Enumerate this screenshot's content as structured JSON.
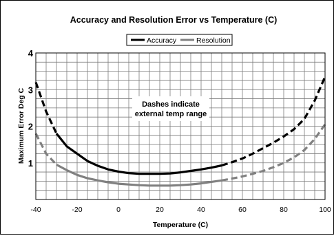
{
  "chart_data": {
    "type": "line",
    "title": "Accuracy and Resolution Error vs Temperature (C)",
    "xlabel": "Temperature (C)",
    "ylabel": "Maximum Error Deg C",
    "xlim": [
      -40,
      100
    ],
    "ylim": [
      0,
      4
    ],
    "x_ticks": [
      -40,
      -20,
      0,
      20,
      40,
      60,
      80,
      100
    ],
    "y_ticks": [
      1,
      2,
      3,
      4
    ],
    "grid": true,
    "legend": "top-center",
    "annotation": [
      "Dashes indicate",
      "external temp range"
    ],
    "solid_range": [
      -30,
      50
    ],
    "series": [
      {
        "name": "Accuracy",
        "color": "#000000",
        "x": [
          -40,
          -35,
          -30,
          -25,
          -20,
          -15,
          -10,
          -5,
          0,
          5,
          10,
          15,
          20,
          25,
          30,
          35,
          40,
          45,
          50,
          55,
          60,
          65,
          70,
          75,
          80,
          85,
          90,
          95,
          100
        ],
        "values": [
          3.2,
          2.4,
          1.8,
          1.45,
          1.25,
          1.05,
          0.92,
          0.82,
          0.76,
          0.72,
          0.7,
          0.7,
          0.7,
          0.71,
          0.74,
          0.78,
          0.82,
          0.87,
          0.93,
          1.02,
          1.12,
          1.25,
          1.4,
          1.55,
          1.72,
          1.92,
          2.2,
          2.7,
          3.35
        ]
      },
      {
        "name": "Resolution",
        "color": "#808080",
        "x": [
          -40,
          -35,
          -30,
          -25,
          -20,
          -15,
          -10,
          -5,
          0,
          5,
          10,
          15,
          20,
          25,
          30,
          35,
          40,
          45,
          50,
          55,
          60,
          65,
          70,
          75,
          80,
          85,
          90,
          95,
          100
        ],
        "values": [
          1.8,
          1.25,
          0.95,
          0.8,
          0.67,
          0.58,
          0.52,
          0.47,
          0.43,
          0.41,
          0.39,
          0.38,
          0.38,
          0.38,
          0.39,
          0.41,
          0.44,
          0.48,
          0.52,
          0.57,
          0.63,
          0.7,
          0.78,
          0.88,
          1.0,
          1.15,
          1.35,
          1.65,
          2.05
        ]
      }
    ]
  }
}
